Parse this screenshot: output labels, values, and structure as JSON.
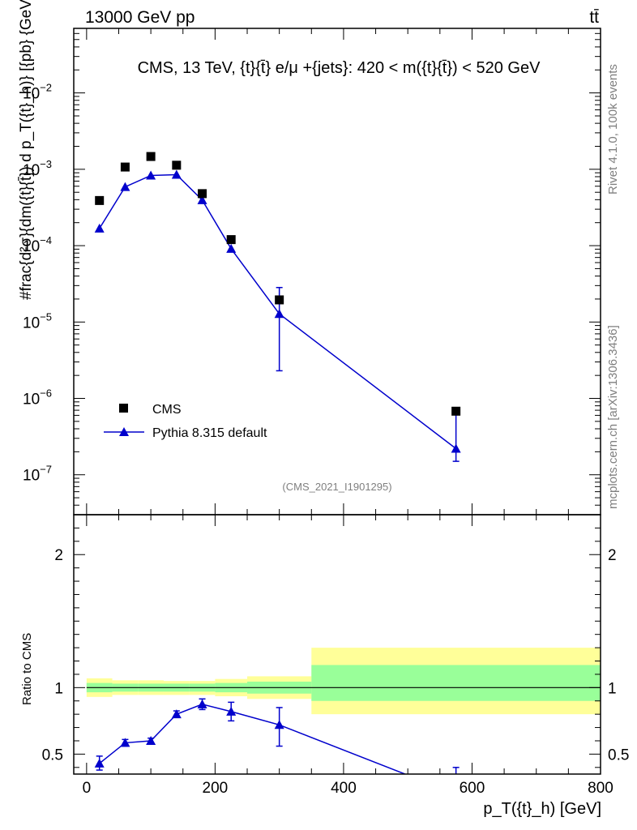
{
  "header": {
    "energy_label": "13000 GeV pp",
    "process_label": "tt̄"
  },
  "side_labels": {
    "rivet": "Rivet 4.1.0,  100k events",
    "mcplots": "mcplots.cern.ch [arXiv:1306.3436]"
  },
  "chart_data": [
    {
      "type": "scatter",
      "panel": "main",
      "title": "CMS, 13 TeV, {t}{t̄} e/μ +{jets}: 420 < m({t}{t̄}) < 520 GeV",
      "analysis_id": "(CMS_2021_I1901295)",
      "ylabel": "#frac{d²σ}{dm({t}{t̄}) d p_T({t}_h)} [{pb} {GeV}⁻²]",
      "yscale": "log",
      "ylim": [
        3e-08,
        0.07
      ],
      "xlim": [
        -20,
        800
      ],
      "y_ticks": [
        {
          "value": 1e-07,
          "base": "10",
          "exp": "−7"
        },
        {
          "value": 1e-06,
          "base": "10",
          "exp": "−6"
        },
        {
          "value": 1e-05,
          "base": "10",
          "exp": "−5"
        },
        {
          "value": 0.0001,
          "base": "10",
          "exp": "−4"
        },
        {
          "value": 0.001,
          "base": "10",
          "exp": "−3"
        },
        {
          "value": 0.01,
          "base": "10",
          "exp": "−2"
        }
      ],
      "legend_position": "bottom-left",
      "series": [
        {
          "name": "CMS",
          "marker": "square",
          "color": "#000000",
          "x": [
            20,
            60,
            100,
            140,
            180,
            225,
            300,
            575
          ],
          "y": [
            0.00039,
            0.00107,
            0.00147,
            0.00113,
            0.00048,
            0.00012,
            1.95e-05,
            6.8e-07
          ]
        },
        {
          "name": "Pythia 8.315 default",
          "marker": "triangle",
          "color": "#0000cc",
          "x": [
            20,
            60,
            100,
            140,
            180,
            225,
            300,
            575
          ],
          "y": [
            0.000168,
            0.000588,
            0.00083,
            0.00085,
            0.000395,
            9.1e-05,
            1.28e-05,
            2.2e-07
          ],
          "err_lo": [
            0.000168,
            0.000588,
            0.00083,
            0.00085,
            0.000395,
            9.1e-05,
            1.05e-05,
            7e-08
          ],
          "err_hi": [
            0.000168,
            0.000588,
            0.00083,
            0.00085,
            0.000395,
            9.1e-05,
            1.55e-05,
            3.9e-07
          ]
        }
      ]
    },
    {
      "type": "line",
      "panel": "ratio",
      "ylabel": "Ratio to CMS",
      "xlabel": "p_T({t}_h) [GeV]",
      "xlim": [
        -20,
        800
      ],
      "ylim": [
        0.35,
        2.3
      ],
      "x_ticks": [
        0,
        200,
        400,
        600,
        800
      ],
      "y_ticks": [
        0.5,
        1,
        2
      ],
      "reference_line": 1,
      "bands": {
        "bin_edges": [
          0,
          40,
          80,
          120,
          160,
          200,
          250,
          350,
          800
        ],
        "yellow_lo": [
          0.93,
          0.945,
          0.945,
          0.945,
          0.945,
          0.935,
          0.915,
          0.8
        ],
        "yellow_hi": [
          1.07,
          1.055,
          1.055,
          1.05,
          1.05,
          1.065,
          1.085,
          1.3
        ],
        "green_lo": [
          0.965,
          0.97,
          0.97,
          0.97,
          0.97,
          0.965,
          0.955,
          0.9
        ],
        "green_hi": [
          1.035,
          1.03,
          1.03,
          1.03,
          1.03,
          1.035,
          1.045,
          1.17
        ],
        "yellow_color": "#ffff99",
        "green_color": "#99ff99"
      },
      "series": [
        {
          "name": "Pythia 8.315 default / CMS",
          "color": "#0000cc",
          "x": [
            20,
            60,
            100,
            140,
            180,
            225,
            300,
            575
          ],
          "y": [
            0.43,
            0.585,
            0.6,
            0.8,
            0.875,
            0.82,
            0.72,
            0.2
          ],
          "err_lo": [
            0.38,
            0.56,
            0.58,
            0.78,
            0.835,
            0.75,
            0.56,
            0.0
          ],
          "err_hi": [
            0.485,
            0.61,
            0.62,
            0.825,
            0.915,
            0.89,
            0.85,
            0.4
          ]
        }
      ]
    }
  ]
}
